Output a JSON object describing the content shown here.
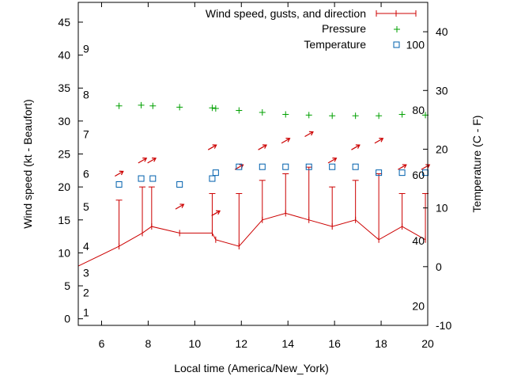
{
  "chart_data": {
    "type": "line",
    "xlabel": "Local time (America/New_York)",
    "ylabel_left": "Wind speed (kt - Beaufort)",
    "ylabel_right": "Temperature (C - F)",
    "xlim": [
      5,
      20
    ],
    "ylim_left": [
      -1,
      48
    ],
    "ylim_right": [
      -10,
      45
    ],
    "x_ticks": [
      "6",
      "8",
      "10",
      "12",
      "14",
      "16",
      "18",
      "20"
    ],
    "y_ticks_left": [
      "0",
      "5",
      "10",
      "15",
      "20",
      "25",
      "30",
      "35",
      "40",
      "45"
    ],
    "y_ticks_right": [
      "-10",
      "0",
      "10",
      "20",
      "30",
      "40"
    ],
    "beaufort_labels": [
      {
        "label": "1",
        "wind": 1
      },
      {
        "label": "2",
        "wind": 4
      },
      {
        "label": "3",
        "wind": 7
      },
      {
        "label": "4",
        "wind": 11
      },
      {
        "label": "5",
        "wind": 17
      },
      {
        "label": "6",
        "wind": 22
      },
      {
        "label": "7",
        "wind": 28
      },
      {
        "label": "8",
        "wind": 34
      },
      {
        "label": "9",
        "wind": 41
      }
    ],
    "fahrenheit_labels": [
      {
        "label": "20",
        "temp": -6.7
      },
      {
        "label": "40",
        "temp": 4.4
      },
      {
        "label": "60",
        "temp": 15.6
      },
      {
        "label": "80",
        "temp": 26.7
      },
      {
        "label": "100",
        "temp": 37.8
      }
    ],
    "legend": [
      "Wind speed, gusts, and direction",
      "Pressure",
      "Temperature"
    ],
    "legend_position": "top-right",
    "colors": {
      "wind": "#cc0000",
      "pressure": "#00a000",
      "temperature": "#0060ad",
      "direction": "#cc0000"
    },
    "wind": {
      "x": [
        5.0,
        6.75,
        7.75,
        8.15,
        9.35,
        10.75,
        10.9,
        11.9,
        12.9,
        13.9,
        14.9,
        15.9,
        16.9,
        17.9,
        18.9,
        19.9
      ],
      "speed": [
        8,
        11,
        13,
        14,
        13,
        13,
        12,
        11,
        15,
        16,
        15,
        14,
        15,
        12,
        14,
        12
      ],
      "gust": [
        null,
        18,
        20,
        20,
        null,
        19,
        null,
        19,
        21,
        22,
        23,
        20,
        21,
        22,
        19,
        19
      ]
    },
    "pressure": {
      "x": [
        6.75,
        7.7,
        8.2,
        9.35,
        10.75,
        10.9,
        11.9,
        12.9,
        13.9,
        14.9,
        15.9,
        16.9,
        17.9,
        18.9,
        19.9
      ],
      "y": [
        32.3,
        32.4,
        32.3,
        32.1,
        32.0,
        31.9,
        31.6,
        31.3,
        31.0,
        30.9,
        30.8,
        30.8,
        30.8,
        31.0,
        30.9
      ]
    },
    "temperature": {
      "x": [
        6.75,
        7.7,
        8.2,
        9.35,
        10.75,
        10.9,
        11.9,
        12.9,
        13.9,
        14.9,
        15.9,
        16.9,
        17.9,
        18.9,
        19.9
      ],
      "y": [
        14,
        15,
        15,
        14,
        15,
        16,
        17,
        17,
        17,
        17,
        17,
        17,
        16,
        16,
        16
      ]
    },
    "direction_arrows": [
      {
        "x": 6.75,
        "wind": 22,
        "dir": "NE"
      },
      {
        "x": 7.75,
        "wind": 24,
        "dir": "NE"
      },
      {
        "x": 8.15,
        "wind": 24,
        "dir": "NE"
      },
      {
        "x": 9.35,
        "wind": 17,
        "dir": "NE"
      },
      {
        "x": 10.75,
        "wind": 26,
        "dir": "NE"
      },
      {
        "x": 10.9,
        "wind": 16,
        "dir": "NE"
      },
      {
        "x": 11.9,
        "wind": 23,
        "dir": "NE"
      },
      {
        "x": 12.9,
        "wind": 26,
        "dir": "NE"
      },
      {
        "x": 13.9,
        "wind": 27,
        "dir": "NE"
      },
      {
        "x": 14.9,
        "wind": 28,
        "dir": "NE"
      },
      {
        "x": 15.9,
        "wind": 24,
        "dir": "NE"
      },
      {
        "x": 16.9,
        "wind": 26,
        "dir": "NE"
      },
      {
        "x": 17.9,
        "wind": 27,
        "dir": "NE"
      },
      {
        "x": 18.9,
        "wind": 23,
        "dir": "NE"
      },
      {
        "x": 19.9,
        "wind": 23,
        "dir": "NE"
      }
    ]
  }
}
